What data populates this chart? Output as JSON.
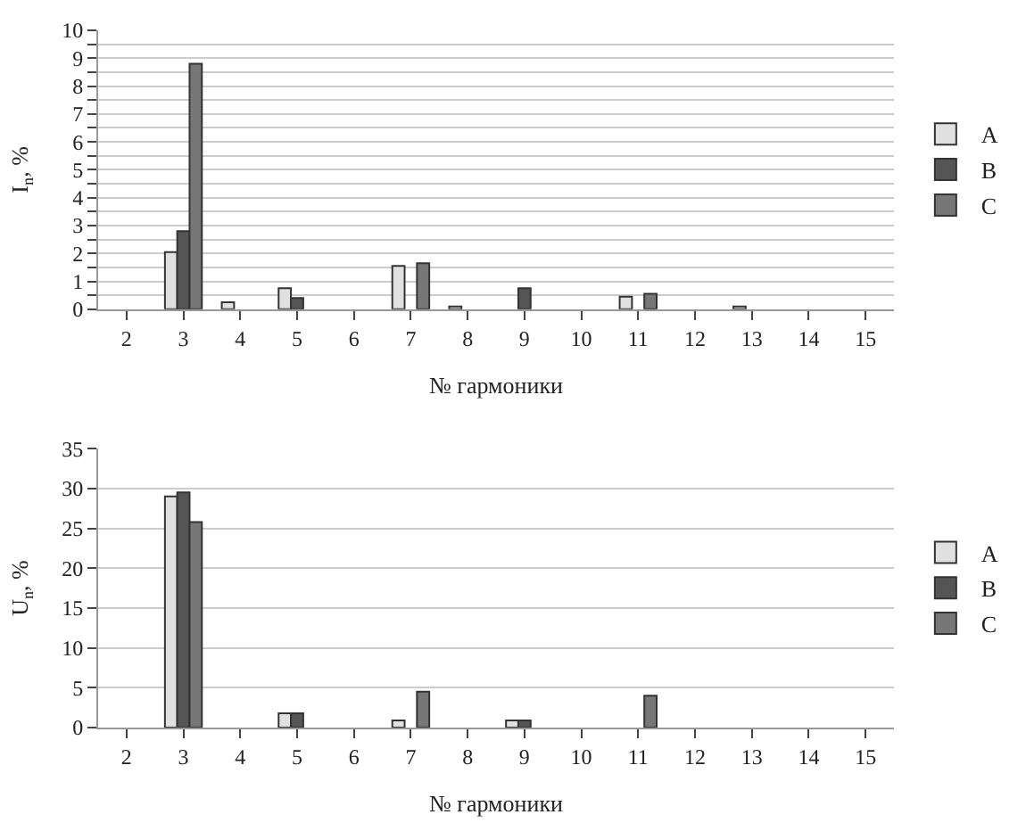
{
  "chart_data": [
    {
      "type": "bar",
      "ylabel": "I$_{n}$, %",
      "xlabel": "№ гармоники",
      "categories": [
        "2",
        "3",
        "4",
        "5",
        "6",
        "7",
        "8",
        "9",
        "10",
        "11",
        "12",
        "13",
        "14",
        "15"
      ],
      "series": [
        {
          "name": "A",
          "color": "#e0e0e0",
          "values": [
            null,
            2.05,
            0.25,
            0.75,
            null,
            1.55,
            0.1,
            null,
            null,
            0.45,
            null,
            0.1,
            null,
            null
          ]
        },
        {
          "name": "B",
          "color": "#555555",
          "values": [
            null,
            2.8,
            null,
            0.4,
            null,
            null,
            null,
            0.75,
            null,
            null,
            null,
            null,
            null,
            null
          ]
        },
        {
          "name": "C",
          "color": "#777777",
          "values": [
            null,
            8.8,
            null,
            null,
            null,
            1.65,
            null,
            null,
            null,
            0.55,
            null,
            null,
            null,
            null
          ]
        }
      ],
      "ylim": [
        0,
        10
      ],
      "yticks": [
        0,
        {
          "value": 0.5,
          "label": null
        },
        1,
        {
          "value": 1.5,
          "label": null
        },
        2,
        {
          "value": 2.5,
          "label": null
        },
        3,
        {
          "value": 3.5,
          "label": null
        },
        4,
        {
          "value": 4.5,
          "label": null
        },
        5,
        {
          "value": 5.5,
          "label": null
        },
        6,
        {
          "value": 6.5,
          "label": null
        },
        7,
        {
          "value": 7.5,
          "label": null
        },
        8,
        {
          "value": 8.5,
          "label": null
        },
        9,
        {
          "value": 9.5,
          "label": null
        },
        10
      ],
      "grid": "y",
      "legend": "right"
    },
    {
      "type": "bar",
      "ylabel": "U$_{n}$, %",
      "xlabel": "№ гармоники",
      "categories": [
        "2",
        "3",
        "4",
        "5",
        "6",
        "7",
        "8",
        "9",
        "10",
        "11",
        "12",
        "13",
        "14",
        "15"
      ],
      "series": [
        {
          "name": "A",
          "color": "#e0e0e0",
          "values": [
            null,
            29,
            null,
            1.8,
            null,
            0.9,
            null,
            0.9,
            null,
            null,
            null,
            null,
            null,
            null
          ]
        },
        {
          "name": "B",
          "color": "#555555",
          "values": [
            null,
            29.5,
            null,
            1.8,
            null,
            null,
            null,
            0.9,
            null,
            null,
            null,
            null,
            null,
            null
          ]
        },
        {
          "name": "C",
          "color": "#777777",
          "values": [
            null,
            25.8,
            null,
            null,
            null,
            4.5,
            null,
            null,
            null,
            4,
            null,
            null,
            null,
            null
          ]
        }
      ],
      "ylim": [
        0,
        35
      ],
      "yticks": [
        0,
        5,
        10,
        15,
        20,
        25,
        30,
        35
      ],
      "grid": "y",
      "legend": "right"
    }
  ]
}
